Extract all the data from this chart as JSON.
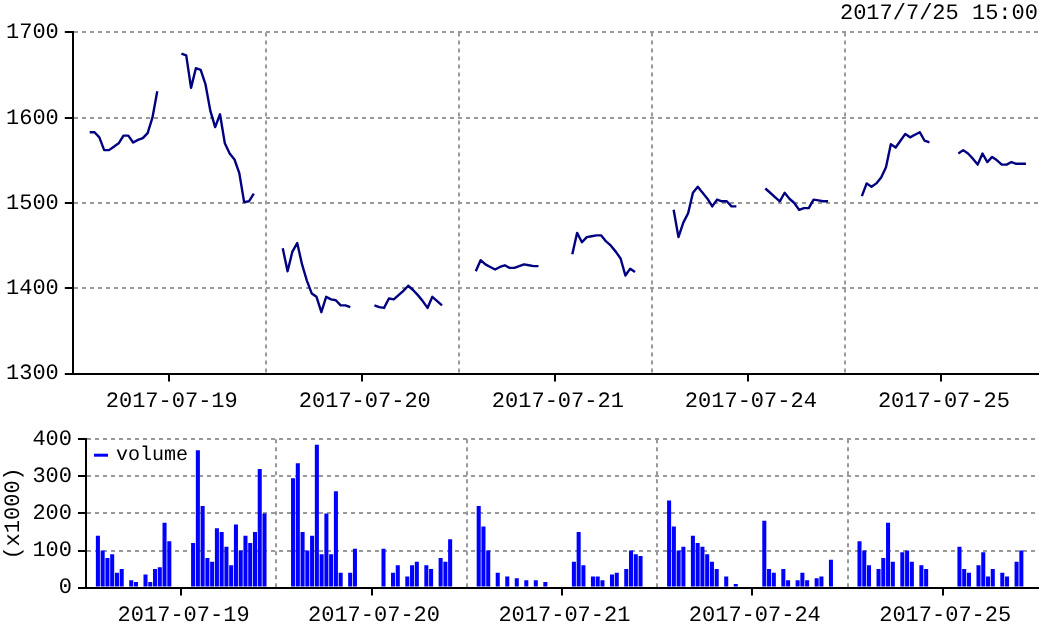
{
  "chart_data": [
    {
      "type": "line",
      "subtitle": "2017/7/25 15:00",
      "categories": [
        null,
        null,
        null,
        null,
        null,
        null,
        null,
        null,
        null,
        null,
        null,
        null,
        null,
        null,
        null,
        null,
        null,
        null,
        null,
        null,
        "2017-07-19",
        null,
        null,
        null,
        null,
        null,
        null,
        null,
        null,
        null,
        null,
        null,
        null,
        null,
        null,
        null,
        null,
        null,
        null,
        null,
        null,
        null,
        null,
        null,
        null,
        null,
        null,
        null,
        null,
        null,
        null,
        null,
        null,
        null,
        null,
        null,
        null,
        null,
        null,
        null,
        "2017-07-20",
        null,
        null,
        null,
        null,
        null,
        null,
        null,
        null,
        null,
        null,
        null,
        null,
        null,
        null,
        null,
        null,
        null,
        null,
        null,
        null,
        null,
        null,
        null,
        null,
        null,
        null,
        null,
        null,
        null,
        null,
        null,
        null,
        null,
        null,
        null,
        null,
        null,
        null,
        null,
        "2017-07-21",
        null,
        null,
        null,
        null,
        null,
        null,
        null,
        null,
        null,
        null,
        null,
        null,
        null,
        null,
        null,
        null,
        null,
        null,
        null,
        null,
        null,
        null,
        null,
        null,
        null,
        null,
        null,
        null,
        null,
        null,
        null,
        null,
        null,
        null,
        null,
        null,
        null,
        null,
        null,
        "2017-07-24",
        null,
        null,
        null,
        null,
        null,
        null,
        null,
        null,
        null,
        null,
        null,
        null,
        null,
        null,
        null,
        null,
        null,
        null,
        null,
        null,
        null,
        null,
        null,
        null,
        null,
        null,
        null,
        null,
        null,
        null,
        null,
        null,
        null,
        null,
        null,
        null,
        null,
        null,
        null,
        "2017-07-25",
        null,
        null,
        null,
        null,
        null,
        null,
        null,
        null,
        null,
        null,
        null,
        null,
        null,
        null,
        null,
        null,
        null,
        null,
        null
      ],
      "series": [
        {
          "color": "#000080",
          "values": [
            null,
            null,
            null,
            1583,
            1583,
            1577,
            1562,
            1562,
            1566,
            1570,
            1579,
            1579,
            1571,
            1574,
            1576,
            1582,
            1600,
            1631,
            null,
            null,
            null,
            null,
            1675,
            1673,
            1635,
            1658,
            1656,
            1639,
            1608,
            1589,
            1604,
            1570,
            1558,
            1551,
            1535,
            1501,
            1502,
            1511,
            null,
            null,
            null,
            null,
            null,
            1447,
            1420,
            1443,
            1453,
            1428,
            1409,
            1394,
            1390,
            1372,
            1390,
            1387,
            1386,
            1380,
            1380,
            1378,
            null,
            null,
            null,
            null,
            1380,
            1378,
            1377,
            1388,
            1387,
            1392,
            1397,
            1403,
            1398,
            1392,
            1385,
            1377,
            1390,
            1385,
            1380,
            null,
            null,
            null,
            null,
            null,
            null,
            1420,
            1433,
            1428,
            1425,
            1422,
            1425,
            1427,
            1424,
            1424,
            1426,
            1428,
            1427,
            1426,
            1426,
            null,
            null,
            null,
            null,
            null,
            null,
            1440,
            1465,
            1454,
            1460,
            1461,
            1462,
            1462,
            1455,
            1450,
            1443,
            1435,
            1415,
            1423,
            1419,
            null,
            null,
            null,
            null,
            null,
            null,
            null,
            1492,
            1460,
            1477,
            1488,
            1512,
            1519,
            1512,
            1505,
            1496,
            1504,
            1502,
            1502,
            1496,
            1496,
            null,
            null,
            null,
            null,
            null,
            1517,
            1512,
            1507,
            1502,
            1512,
            1505,
            1500,
            1492,
            1494,
            1494,
            1504,
            1503,
            1502,
            1502,
            null,
            null,
            null,
            null,
            null,
            null,
            1508,
            1523,
            1519,
            1523,
            1530,
            1542,
            1569,
            1565,
            1573,
            1581,
            1577,
            1580,
            1583,
            1573,
            1571,
            null,
            null,
            null,
            null,
            null,
            1558,
            1562,
            1558,
            1552,
            1545,
            1558,
            1548,
            1554,
            1550,
            1545,
            1545,
            1548,
            1546,
            1546,
            1546,
            null,
            null
          ]
        }
      ],
      "ylim": [
        1300,
        1700
      ],
      "yticks": [
        1300,
        1400,
        1500,
        1600,
        1700
      ],
      "grid": true,
      "legend": false
    },
    {
      "type": "bar",
      "ylabel": "(x1000)",
      "categories": [
        null,
        null,
        null,
        null,
        null,
        null,
        null,
        null,
        null,
        null,
        null,
        null,
        null,
        null,
        null,
        null,
        null,
        null,
        null,
        null,
        "2017-07-19",
        null,
        null,
        null,
        null,
        null,
        null,
        null,
        null,
        null,
        null,
        null,
        null,
        null,
        null,
        null,
        null,
        null,
        null,
        null,
        null,
        null,
        null,
        null,
        null,
        null,
        null,
        null,
        null,
        null,
        null,
        null,
        null,
        null,
        null,
        null,
        null,
        null,
        null,
        null,
        "2017-07-20",
        null,
        null,
        null,
        null,
        null,
        null,
        null,
        null,
        null,
        null,
        null,
        null,
        null,
        null,
        null,
        null,
        null,
        null,
        null,
        null,
        null,
        null,
        null,
        null,
        null,
        null,
        null,
        null,
        null,
        null,
        null,
        null,
        null,
        null,
        null,
        null,
        null,
        null,
        null,
        "2017-07-21",
        null,
        null,
        null,
        null,
        null,
        null,
        null,
        null,
        null,
        null,
        null,
        null,
        null,
        null,
        null,
        null,
        null,
        null,
        null,
        null,
        null,
        null,
        null,
        null,
        null,
        null,
        null,
        null,
        null,
        null,
        null,
        null,
        null,
        null,
        null,
        null,
        null,
        null,
        null,
        "2017-07-24",
        null,
        null,
        null,
        null,
        null,
        null,
        null,
        null,
        null,
        null,
        null,
        null,
        null,
        null,
        null,
        null,
        null,
        null,
        null,
        null,
        null,
        null,
        null,
        null,
        null,
        null,
        null,
        null,
        null,
        null,
        null,
        null,
        null,
        null,
        null,
        null,
        null,
        null,
        null,
        "2017-07-25",
        null,
        null,
        null,
        null,
        null,
        null,
        null,
        null,
        null,
        null,
        null,
        null,
        null,
        null,
        null,
        null,
        null,
        null,
        null
      ],
      "series": [
        {
          "name": "volume",
          "color": "#0000ff",
          "values": [
            null,
            null,
            140,
            100,
            80,
            90,
            40,
            50,
            null,
            20,
            15,
            null,
            35,
            15,
            50,
            55,
            175,
            125,
            null,
            null,
            null,
            null,
            120,
            370,
            220,
            80,
            70,
            160,
            150,
            110,
            60,
            170,
            100,
            140,
            120,
            150,
            320,
            200,
            null,
            null,
            null,
            null,
            null,
            295,
            335,
            150,
            100,
            140,
            385,
            90,
            200,
            90,
            260,
            40,
            null,
            40,
            105,
            null,
            null,
            null,
            null,
            null,
            105,
            null,
            40,
            60,
            null,
            30,
            60,
            70,
            null,
            60,
            50,
            null,
            80,
            70,
            130,
            null,
            null,
            null,
            null,
            null,
            220,
            165,
            100,
            null,
            40,
            null,
            30,
            null,
            25,
            null,
            20,
            null,
            20,
            null,
            15,
            null,
            null,
            null,
            null,
            null,
            70,
            150,
            60,
            null,
            30,
            30,
            20,
            null,
            35,
            40,
            null,
            50,
            100,
            90,
            85,
            null,
            null,
            null,
            null,
            null,
            235,
            165,
            100,
            110,
            null,
            140,
            120,
            110,
            90,
            70,
            50,
            null,
            30,
            null,
            10,
            null,
            null,
            null,
            null,
            null,
            180,
            50,
            40,
            null,
            50,
            20,
            null,
            20,
            40,
            20,
            null,
            25,
            30,
            null,
            75,
            null,
            null,
            null,
            null,
            null,
            125,
            100,
            60,
            null,
            50,
            80,
            175,
            70,
            null,
            95,
            100,
            70,
            null,
            60,
            50,
            null,
            null,
            null,
            null,
            null,
            null,
            110,
            50,
            40,
            null,
            60,
            95,
            30,
            50,
            null,
            40,
            30,
            null,
            70,
            100,
            null,
            null,
            null
          ]
        }
      ],
      "ylim": [
        0,
        400
      ],
      "yticks": [
        0,
        100,
        200,
        300,
        400
      ],
      "grid": true,
      "legend": "top left"
    }
  ]
}
